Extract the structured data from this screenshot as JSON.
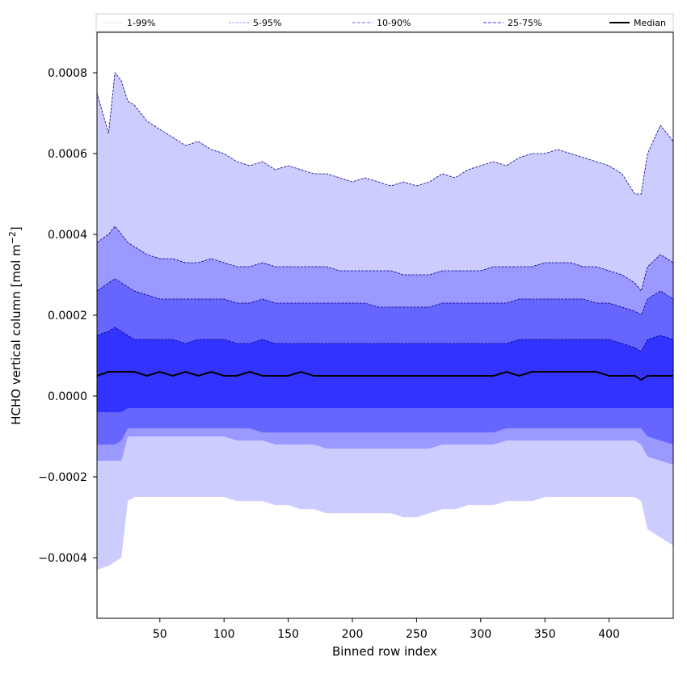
{
  "chart_data": {
    "type": "area",
    "xlabel": "Binned row index",
    "ylabel_main": "HCHO vertical column [mol m",
    "ylabel_sup": "−2",
    "ylabel_close": "]",
    "xlim": [
      1,
      450
    ],
    "ylim": [
      -0.00055,
      0.0009
    ],
    "x_ticks": [
      50,
      100,
      150,
      200,
      250,
      300,
      350,
      400
    ],
    "x_tick_labels": [
      "50",
      "100",
      "150",
      "200",
      "250",
      "300",
      "350",
      "400"
    ],
    "y_ticks": [
      -0.0004,
      -0.0002,
      0.0,
      0.0002,
      0.0004,
      0.0006,
      0.0008
    ],
    "y_tick_labels": [
      "−0.0004",
      "−0.0002",
      "0.0000",
      "0.0002",
      "0.0004",
      "0.0006",
      "0.0008"
    ],
    "grid": false,
    "legend_position": "top, spanning full width",
    "legend": [
      {
        "label": "1-99%",
        "color": "#ccccff",
        "style": "dotted"
      },
      {
        "label": "5-95%",
        "color": "#9999ff",
        "style": "dashed-thin"
      },
      {
        "label": "10-90%",
        "color": "#6666ff",
        "style": "dashed"
      },
      {
        "label": "25-75%",
        "color": "#3333ff",
        "style": "dashed"
      },
      {
        "label": "Median",
        "color": "#000000",
        "style": "solid"
      }
    ],
    "x": [
      1,
      10,
      15,
      20,
      25,
      30,
      40,
      50,
      60,
      70,
      80,
      90,
      100,
      110,
      120,
      130,
      140,
      150,
      160,
      170,
      180,
      190,
      200,
      210,
      220,
      230,
      240,
      250,
      260,
      270,
      280,
      290,
      300,
      310,
      320,
      330,
      340,
      350,
      360,
      370,
      380,
      390,
      400,
      410,
      420,
      425,
      430,
      440,
      450
    ],
    "series": [
      {
        "name": "1-99%",
        "color": "#ccccff",
        "upper": [
          0.00075,
          0.00065,
          0.0008,
          0.00078,
          0.00073,
          0.00072,
          0.00068,
          0.00066,
          0.00064,
          0.00062,
          0.00063,
          0.00061,
          0.0006,
          0.00058,
          0.00057,
          0.00058,
          0.00056,
          0.00057,
          0.00056,
          0.00055,
          0.00055,
          0.00054,
          0.00053,
          0.00054,
          0.00053,
          0.00052,
          0.00053,
          0.00052,
          0.00053,
          0.00055,
          0.00054,
          0.00056,
          0.00057,
          0.00058,
          0.00057,
          0.00059,
          0.0006,
          0.0006,
          0.00061,
          0.0006,
          0.00059,
          0.00058,
          0.00057,
          0.00055,
          0.0005,
          0.0005,
          0.0006,
          0.00067,
          0.00063
        ],
        "lower": [
          -0.00043,
          -0.00042,
          -0.00041,
          -0.0004,
          -0.00026,
          -0.00025,
          -0.00025,
          -0.00025,
          -0.00025,
          -0.00025,
          -0.00025,
          -0.00025,
          -0.00025,
          -0.00026,
          -0.00026,
          -0.00026,
          -0.00027,
          -0.00027,
          -0.00028,
          -0.00028,
          -0.00029,
          -0.00029,
          -0.00029,
          -0.00029,
          -0.00029,
          -0.00029,
          -0.0003,
          -0.0003,
          -0.00029,
          -0.00028,
          -0.00028,
          -0.00027,
          -0.00027,
          -0.00027,
          -0.00026,
          -0.00026,
          -0.00026,
          -0.00025,
          -0.00025,
          -0.00025,
          -0.00025,
          -0.00025,
          -0.00025,
          -0.00025,
          -0.00025,
          -0.00026,
          -0.00033,
          -0.00035,
          -0.00037
        ]
      },
      {
        "name": "5-95%",
        "color": "#9999ff",
        "upper": [
          0.00038,
          0.0004,
          0.00042,
          0.0004,
          0.00038,
          0.00037,
          0.00035,
          0.00034,
          0.00034,
          0.00033,
          0.00033,
          0.00034,
          0.00033,
          0.00032,
          0.00032,
          0.00033,
          0.00032,
          0.00032,
          0.00032,
          0.00032,
          0.00032,
          0.00031,
          0.00031,
          0.00031,
          0.00031,
          0.00031,
          0.0003,
          0.0003,
          0.0003,
          0.00031,
          0.00031,
          0.00031,
          0.00031,
          0.00032,
          0.00032,
          0.00032,
          0.00032,
          0.00033,
          0.00033,
          0.00033,
          0.00032,
          0.00032,
          0.00031,
          0.0003,
          0.00028,
          0.00026,
          0.00032,
          0.00035,
          0.00033
        ],
        "lower": [
          -0.00016,
          -0.00016,
          -0.00016,
          -0.00016,
          -0.0001,
          -0.0001,
          -0.0001,
          -0.0001,
          -0.0001,
          -0.0001,
          -0.0001,
          -0.0001,
          -0.0001,
          -0.00011,
          -0.00011,
          -0.00011,
          -0.00012,
          -0.00012,
          -0.00012,
          -0.00012,
          -0.00013,
          -0.00013,
          -0.00013,
          -0.00013,
          -0.00013,
          -0.00013,
          -0.00013,
          -0.00013,
          -0.00013,
          -0.00012,
          -0.00012,
          -0.00012,
          -0.00012,
          -0.00012,
          -0.00011,
          -0.00011,
          -0.00011,
          -0.00011,
          -0.00011,
          -0.00011,
          -0.00011,
          -0.00011,
          -0.00011,
          -0.00011,
          -0.00011,
          -0.00012,
          -0.00015,
          -0.00016,
          -0.00017
        ]
      },
      {
        "name": "10-90%",
        "color": "#6666ff",
        "upper": [
          0.00026,
          0.00028,
          0.00029,
          0.00028,
          0.00027,
          0.00026,
          0.00025,
          0.00024,
          0.00024,
          0.00024,
          0.00024,
          0.00024,
          0.00024,
          0.00023,
          0.00023,
          0.00024,
          0.00023,
          0.00023,
          0.00023,
          0.00023,
          0.00023,
          0.00023,
          0.00023,
          0.00023,
          0.00022,
          0.00022,
          0.00022,
          0.00022,
          0.00022,
          0.00023,
          0.00023,
          0.00023,
          0.00023,
          0.00023,
          0.00023,
          0.00024,
          0.00024,
          0.00024,
          0.00024,
          0.00024,
          0.00024,
          0.00023,
          0.00023,
          0.00022,
          0.00021,
          0.0002,
          0.00024,
          0.00026,
          0.00024
        ],
        "lower": [
          -0.00012,
          -0.00012,
          -0.00012,
          -0.00011,
          -8e-05,
          -8e-05,
          -8e-05,
          -8e-05,
          -8e-05,
          -8e-05,
          -8e-05,
          -8e-05,
          -8e-05,
          -8e-05,
          -8e-05,
          -9e-05,
          -9e-05,
          -9e-05,
          -9e-05,
          -9e-05,
          -9e-05,
          -9e-05,
          -9e-05,
          -9e-05,
          -9e-05,
          -9e-05,
          -9e-05,
          -9e-05,
          -9e-05,
          -9e-05,
          -9e-05,
          -9e-05,
          -9e-05,
          -9e-05,
          -8e-05,
          -8e-05,
          -8e-05,
          -8e-05,
          -8e-05,
          -8e-05,
          -8e-05,
          -8e-05,
          -8e-05,
          -8e-05,
          -8e-05,
          -8e-05,
          -0.0001,
          -0.00011,
          -0.00012
        ]
      },
      {
        "name": "25-75%",
        "color": "#3333ff",
        "upper": [
          0.00015,
          0.00016,
          0.00017,
          0.00016,
          0.00015,
          0.00014,
          0.00014,
          0.00014,
          0.00014,
          0.00013,
          0.00014,
          0.00014,
          0.00014,
          0.00013,
          0.00013,
          0.00014,
          0.00013,
          0.00013,
          0.00013,
          0.00013,
          0.00013,
          0.00013,
          0.00013,
          0.00013,
          0.00013,
          0.00013,
          0.00013,
          0.00013,
          0.00013,
          0.00013,
          0.00013,
          0.00013,
          0.00013,
          0.00013,
          0.00013,
          0.00014,
          0.00014,
          0.00014,
          0.00014,
          0.00014,
          0.00014,
          0.00014,
          0.00014,
          0.00013,
          0.00012,
          0.00011,
          0.00014,
          0.00015,
          0.00014
        ],
        "lower": [
          -4e-05,
          -4e-05,
          -4e-05,
          -4e-05,
          -3e-05,
          -3e-05,
          -3e-05,
          -3e-05,
          -3e-05,
          -3e-05,
          -3e-05,
          -3e-05,
          -3e-05,
          -3e-05,
          -3e-05,
          -3e-05,
          -3e-05,
          -3e-05,
          -3e-05,
          -3e-05,
          -3e-05,
          -3e-05,
          -3e-05,
          -3e-05,
          -3e-05,
          -3e-05,
          -3e-05,
          -3e-05,
          -3e-05,
          -3e-05,
          -3e-05,
          -3e-05,
          -3e-05,
          -3e-05,
          -3e-05,
          -3e-05,
          -3e-05,
          -3e-05,
          -3e-05,
          -3e-05,
          -3e-05,
          -3e-05,
          -3e-05,
          -3e-05,
          -3e-05,
          -3e-05,
          -3e-05,
          -3e-05,
          -3e-05
        ]
      },
      {
        "name": "Median",
        "color": "#000000",
        "values": [
          5e-05,
          6e-05,
          6e-05,
          6e-05,
          6e-05,
          6e-05,
          5e-05,
          6e-05,
          5e-05,
          6e-05,
          5e-05,
          6e-05,
          5e-05,
          5e-05,
          6e-05,
          5e-05,
          5e-05,
          5e-05,
          6e-05,
          5e-05,
          5e-05,
          5e-05,
          5e-05,
          5e-05,
          5e-05,
          5e-05,
          5e-05,
          5e-05,
          5e-05,
          5e-05,
          5e-05,
          5e-05,
          5e-05,
          5e-05,
          6e-05,
          5e-05,
          6e-05,
          6e-05,
          6e-05,
          6e-05,
          6e-05,
          6e-05,
          5e-05,
          5e-05,
          5e-05,
          4e-05,
          5e-05,
          5e-05,
          5e-05
        ]
      }
    ]
  }
}
